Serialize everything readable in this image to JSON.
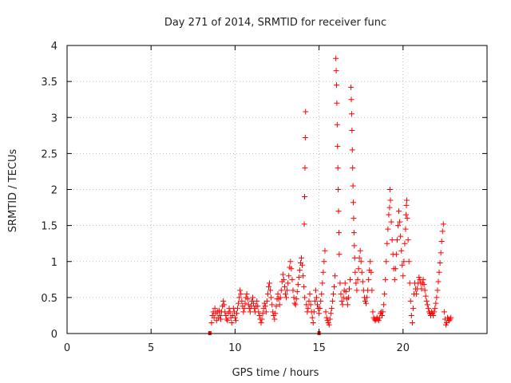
{
  "chart_data": {
    "type": "scatter",
    "title": "Day 271 of 2014, SRMTID for receiver func",
    "xlabel": "GPS time / hours",
    "ylabel": "SRMTID / TECUs",
    "xlim": [
      0,
      25
    ],
    "ylim": [
      0,
      4
    ],
    "xticks": [
      0,
      5,
      10,
      15,
      20
    ],
    "yticks": [
      0,
      0.5,
      1,
      1.5,
      2,
      2.5,
      3,
      3.5,
      4
    ],
    "xtick_labels": [
      "0",
      "5",
      "10",
      "15",
      "20"
    ],
    "ytick_labels": [
      "0",
      "0.5",
      "1",
      "1.5",
      "2",
      "2.5",
      "3",
      "3.5",
      "4"
    ],
    "grid": true,
    "marker": "+",
    "series": [
      {
        "name": "SRMTID",
        "color": "#ff0000",
        "points": [
          [
            8.6,
            0.15
          ],
          [
            8.65,
            0.25
          ],
          [
            8.7,
            0.3
          ],
          [
            8.75,
            0.22
          ],
          [
            8.8,
            0.35
          ],
          [
            8.85,
            0.28
          ],
          [
            8.9,
            0.18
          ],
          [
            8.95,
            0.3
          ],
          [
            9.0,
            0.22
          ],
          [
            9.05,
            0.32
          ],
          [
            9.1,
            0.25
          ],
          [
            9.15,
            0.2
          ],
          [
            9.2,
            0.3
          ],
          [
            9.25,
            0.38
          ],
          [
            9.3,
            0.45
          ],
          [
            9.35,
            0.4
          ],
          [
            9.4,
            0.3
          ],
          [
            9.45,
            0.25
          ],
          [
            9.5,
            0.2
          ],
          [
            9.55,
            0.18
          ],
          [
            9.6,
            0.28
          ],
          [
            9.65,
            0.35
          ],
          [
            9.7,
            0.3
          ],
          [
            9.75,
            0.22
          ],
          [
            9.8,
            0.15
          ],
          [
            9.85,
            0.25
          ],
          [
            9.9,
            0.35
          ],
          [
            9.95,
            0.3
          ],
          [
            10.0,
            0.22
          ],
          [
            10.05,
            0.18
          ],
          [
            10.1,
            0.28
          ],
          [
            10.15,
            0.35
          ],
          [
            10.2,
            0.42
          ],
          [
            10.25,
            0.5
          ],
          [
            10.3,
            0.6
          ],
          [
            10.35,
            0.55
          ],
          [
            10.4,
            0.45
          ],
          [
            10.45,
            0.38
          ],
          [
            10.5,
            0.3
          ],
          [
            10.55,
            0.35
          ],
          [
            10.6,
            0.42
          ],
          [
            10.65,
            0.5
          ],
          [
            10.7,
            0.55
          ],
          [
            10.75,
            0.48
          ],
          [
            10.8,
            0.4
          ],
          [
            10.85,
            0.35
          ],
          [
            10.9,
            0.3
          ],
          [
            10.95,
            0.38
          ],
          [
            11.0,
            0.45
          ],
          [
            11.05,
            0.5
          ],
          [
            11.1,
            0.42
          ],
          [
            11.15,
            0.35
          ],
          [
            11.2,
            0.3
          ],
          [
            11.25,
            0.38
          ],
          [
            11.3,
            0.45
          ],
          [
            11.35,
            0.38
          ],
          [
            11.4,
            0.3
          ],
          [
            11.45,
            0.25
          ],
          [
            11.5,
            0.2
          ],
          [
            11.55,
            0.15
          ],
          [
            11.6,
            0.2
          ],
          [
            11.65,
            0.28
          ],
          [
            11.7,
            0.35
          ],
          [
            11.75,
            0.42
          ],
          [
            11.8,
            0.38
          ],
          [
            11.85,
            0.3
          ],
          [
            11.9,
            0.45
          ],
          [
            11.95,
            0.55
          ],
          [
            12.0,
            0.65
          ],
          [
            12.05,
            0.7
          ],
          [
            12.1,
            0.6
          ],
          [
            12.15,
            0.5
          ],
          [
            12.2,
            0.4
          ],
          [
            12.25,
            0.3
          ],
          [
            12.3,
            0.25
          ],
          [
            12.35,
            0.2
          ],
          [
            12.4,
            0.28
          ],
          [
            12.45,
            0.38
          ],
          [
            12.5,
            0.48
          ],
          [
            12.55,
            0.55
          ],
          [
            12.6,
            0.48
          ],
          [
            12.65,
            0.4
          ],
          [
            12.7,
            0.5
          ],
          [
            12.75,
            0.6
          ],
          [
            12.8,
            0.72
          ],
          [
            12.85,
            0.82
          ],
          [
            12.9,
            0.75
          ],
          [
            12.95,
            0.65
          ],
          [
            13.0,
            0.55
          ],
          [
            13.05,
            0.5
          ],
          [
            13.1,
            0.6
          ],
          [
            13.15,
            0.7
          ],
          [
            13.2,
            0.8
          ],
          [
            13.25,
            0.92
          ],
          [
            13.3,
            1.0
          ],
          [
            13.35,
            0.9
          ],
          [
            13.4,
            0.75
          ],
          [
            13.45,
            0.6
          ],
          [
            13.5,
            0.5
          ],
          [
            13.55,
            0.42
          ],
          [
            13.6,
            0.4
          ],
          [
            13.65,
            0.48
          ],
          [
            13.7,
            0.58
          ],
          [
            13.75,
            0.68
          ],
          [
            13.8,
            0.78
          ],
          [
            13.85,
            0.88
          ],
          [
            13.9,
            0.98
          ],
          [
            13.95,
            1.05
          ],
          [
            14.0,
            0.95
          ],
          [
            14.05,
            0.8
          ],
          [
            14.1,
            0.65
          ],
          [
            14.15,
            0.5
          ],
          [
            14.2,
            3.08
          ],
          [
            14.18,
            2.72
          ],
          [
            14.16,
            2.3
          ],
          [
            14.14,
            1.9
          ],
          [
            14.12,
            1.52
          ],
          [
            14.25,
            0.4
          ],
          [
            14.3,
            0.3
          ],
          [
            14.35,
            0.35
          ],
          [
            14.4,
            0.45
          ],
          [
            14.45,
            0.55
          ],
          [
            14.5,
            0.4
          ],
          [
            14.55,
            0.3
          ],
          [
            14.6,
            0.22
          ],
          [
            14.65,
            0.15
          ],
          [
            14.7,
            0.3
          ],
          [
            14.75,
            0.45
          ],
          [
            14.8,
            0.6
          ],
          [
            14.85,
            0.5
          ],
          [
            14.9,
            0.4
          ],
          [
            14.95,
            0.35
          ],
          [
            15.0,
            0.28
          ],
          [
            15.05,
            0.35
          ],
          [
            15.1,
            0.45
          ],
          [
            15.15,
            0.55
          ],
          [
            15.2,
            0.7
          ],
          [
            15.25,
            0.85
          ],
          [
            15.3,
            1.0
          ],
          [
            15.35,
            1.15
          ],
          [
            15.4,
            0.3
          ],
          [
            15.45,
            0.22
          ],
          [
            15.5,
            0.18
          ],
          [
            15.55,
            0.15
          ],
          [
            15.6,
            0.12
          ],
          [
            15.65,
            0.2
          ],
          [
            15.7,
            0.28
          ],
          [
            15.75,
            0.35
          ],
          [
            15.8,
            0.45
          ],
          [
            15.85,
            0.55
          ],
          [
            15.9,
            0.65
          ],
          [
            15.95,
            0.8
          ],
          [
            16.0,
            3.82
          ],
          [
            16.02,
            3.65
          ],
          [
            16.04,
            3.45
          ],
          [
            16.06,
            3.2
          ],
          [
            16.08,
            2.9
          ],
          [
            16.1,
            2.6
          ],
          [
            16.12,
            2.3
          ],
          [
            16.14,
            2.0
          ],
          [
            16.16,
            1.7
          ],
          [
            16.18,
            1.4
          ],
          [
            16.2,
            1.1
          ],
          [
            16.25,
            0.7
          ],
          [
            16.3,
            0.55
          ],
          [
            16.35,
            0.45
          ],
          [
            16.4,
            0.4
          ],
          [
            16.45,
            0.5
          ],
          [
            16.5,
            0.6
          ],
          [
            16.55,
            0.7
          ],
          [
            16.6,
            0.58
          ],
          [
            16.65,
            0.48
          ],
          [
            16.7,
            0.4
          ],
          [
            16.75,
            0.5
          ],
          [
            16.8,
            0.62
          ],
          [
            16.85,
            0.75
          ],
          [
            16.9,
            3.42
          ],
          [
            16.92,
            3.25
          ],
          [
            16.94,
            3.05
          ],
          [
            16.96,
            2.82
          ],
          [
            16.98,
            2.55
          ],
          [
            17.0,
            2.3
          ],
          [
            17.02,
            2.05
          ],
          [
            17.04,
            1.82
          ],
          [
            17.06,
            1.6
          ],
          [
            17.08,
            1.4
          ],
          [
            17.1,
            1.22
          ],
          [
            17.12,
            1.05
          ],
          [
            17.15,
            0.85
          ],
          [
            17.2,
            0.7
          ],
          [
            17.25,
            0.6
          ],
          [
            17.3,
            0.75
          ],
          [
            17.35,
            0.9
          ],
          [
            17.4,
            1.05
          ],
          [
            17.45,
            1.15
          ],
          [
            17.5,
            1.0
          ],
          [
            17.55,
            0.85
          ],
          [
            17.6,
            0.72
          ],
          [
            17.65,
            0.6
          ],
          [
            17.7,
            0.5
          ],
          [
            17.75,
            0.45
          ],
          [
            17.8,
            0.42
          ],
          [
            17.85,
            0.5
          ],
          [
            17.9,
            0.6
          ],
          [
            17.95,
            0.75
          ],
          [
            18.0,
            0.88
          ],
          [
            18.05,
            1.0
          ],
          [
            18.1,
            0.85
          ],
          [
            18.15,
            0.6
          ],
          [
            18.2,
            0.3
          ],
          [
            18.25,
            0.22
          ],
          [
            18.3,
            0.2
          ],
          [
            18.35,
            0.18
          ],
          [
            18.4,
            0.2
          ],
          [
            18.45,
            0.22
          ],
          [
            18.5,
            0.2
          ],
          [
            18.55,
            0.18
          ],
          [
            18.6,
            0.22
          ],
          [
            18.65,
            0.28
          ],
          [
            18.7,
            0.3
          ],
          [
            18.75,
            0.25
          ],
          [
            18.8,
            0.3
          ],
          [
            18.85,
            0.4
          ],
          [
            18.9,
            0.55
          ],
          [
            18.95,
            0.75
          ],
          [
            19.0,
            1.0
          ],
          [
            19.05,
            1.25
          ],
          [
            19.1,
            1.45
          ],
          [
            19.15,
            1.65
          ],
          [
            19.2,
            1.75
          ],
          [
            19.22,
            2.0
          ],
          [
            19.25,
            1.85
          ],
          [
            19.3,
            1.55
          ],
          [
            19.35,
            1.3
          ],
          [
            19.4,
            1.1
          ],
          [
            19.45,
            0.9
          ],
          [
            19.5,
            0.75
          ],
          [
            19.55,
            0.9
          ],
          [
            19.6,
            1.1
          ],
          [
            19.65,
            1.3
          ],
          [
            19.7,
            1.5
          ],
          [
            19.75,
            1.7
          ],
          [
            19.8,
            1.55
          ],
          [
            19.85,
            1.35
          ],
          [
            19.9,
            1.15
          ],
          [
            19.95,
            0.95
          ],
          [
            20.0,
            0.8
          ],
          [
            20.05,
            1.0
          ],
          [
            20.1,
            1.25
          ],
          [
            20.15,
            1.45
          ],
          [
            20.18,
            1.65
          ],
          [
            20.2,
            1.78
          ],
          [
            20.22,
            1.85
          ],
          [
            20.25,
            1.6
          ],
          [
            20.3,
            1.3
          ],
          [
            20.35,
            1.0
          ],
          [
            20.4,
            0.7
          ],
          [
            20.45,
            0.45
          ],
          [
            20.5,
            0.25
          ],
          [
            20.55,
            0.15
          ],
          [
            20.6,
            0.35
          ],
          [
            20.65,
            0.55
          ],
          [
            20.7,
            0.7
          ],
          [
            20.75,
            0.62
          ],
          [
            20.8,
            0.55
          ],
          [
            20.85,
            0.62
          ],
          [
            20.9,
            0.7
          ],
          [
            20.95,
            0.78
          ],
          [
            21.0,
            0.75
          ],
          [
            21.05,
            0.7
          ],
          [
            21.1,
            0.62
          ],
          [
            21.15,
            0.7
          ],
          [
            21.2,
            0.75
          ],
          [
            21.25,
            0.68
          ],
          [
            21.3,
            0.6
          ],
          [
            21.35,
            0.52
          ],
          [
            21.4,
            0.45
          ],
          [
            21.45,
            0.4
          ],
          [
            21.5,
            0.35
          ],
          [
            21.55,
            0.3
          ],
          [
            21.6,
            0.28
          ],
          [
            21.65,
            0.25
          ],
          [
            21.7,
            0.3
          ],
          [
            21.75,
            0.28
          ],
          [
            21.8,
            0.25
          ],
          [
            21.85,
            0.3
          ],
          [
            21.9,
            0.35
          ],
          [
            21.95,
            0.42
          ],
          [
            22.0,
            0.5
          ],
          [
            22.05,
            0.6
          ],
          [
            22.1,
            0.72
          ],
          [
            22.15,
            0.85
          ],
          [
            22.2,
            0.98
          ],
          [
            22.25,
            1.12
          ],
          [
            22.3,
            1.28
          ],
          [
            22.35,
            1.42
          ],
          [
            22.4,
            1.52
          ],
          [
            22.45,
            0.3
          ],
          [
            22.5,
            0.2
          ],
          [
            22.55,
            0.12
          ],
          [
            22.6,
            0.15
          ],
          [
            22.65,
            0.22
          ],
          [
            22.7,
            0.2
          ],
          [
            22.75,
            0.18
          ],
          [
            22.8,
            0.2
          ],
          [
            22.85,
            0.22
          ]
        ]
      }
    ]
  }
}
